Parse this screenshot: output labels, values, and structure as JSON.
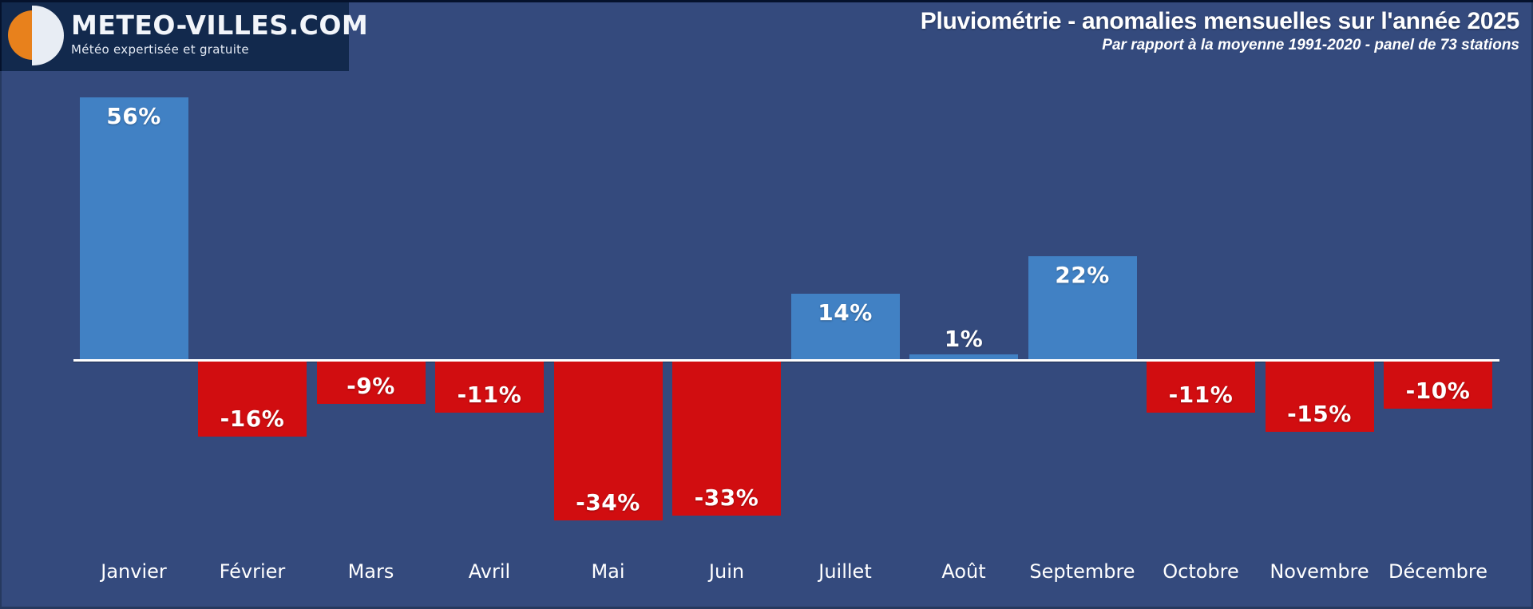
{
  "logo": {
    "brand": "METEO-VILLES.COM",
    "tagline": "Météo expertisée et gratuite",
    "icon": "sun-moon-logo-icon"
  },
  "header": {
    "title": "Pluviométrie - anomalies mensuelles sur l'année 2025",
    "subtitle": "Par rapport à la moyenne 1991-2020 - panel de 73 stations"
  },
  "chart_data": {
    "type": "bar",
    "title": "Pluviométrie - anomalies mensuelles sur l'année 2025",
    "subtitle": "Par rapport à la moyenne 1991-2020 - panel de 73 stations",
    "categories": [
      "Janvier",
      "Février",
      "Mars",
      "Avril",
      "Mai",
      "Juin",
      "Juillet",
      "Août",
      "Septembre",
      "Octobre",
      "Novembre",
      "Décembre"
    ],
    "values": [
      56,
      -16,
      -9,
      -11,
      -34,
      -33,
      14,
      1,
      22,
      -11,
      -15,
      -10
    ],
    "value_labels": [
      "56%",
      "-16%",
      "-9%",
      "-11%",
      "-34%",
      "-33%",
      "14%",
      "1%",
      "22%",
      "-11%",
      "-15%",
      "-10%"
    ],
    "unit": "%",
    "baseline": 0,
    "ylim": [
      -40,
      60
    ],
    "grid": false,
    "legend": false,
    "axis_ticks_hidden": true,
    "positive_color": "#4181c4",
    "negative_color": "#d10d10",
    "axis_line_color": "#ffffff",
    "background_color": "#344a7d",
    "logo_background_color": "#12294d",
    "logo_orange_color": "#e8811c",
    "logo_disc_color": "#e8edf4",
    "label_color": "#ffffff"
  }
}
